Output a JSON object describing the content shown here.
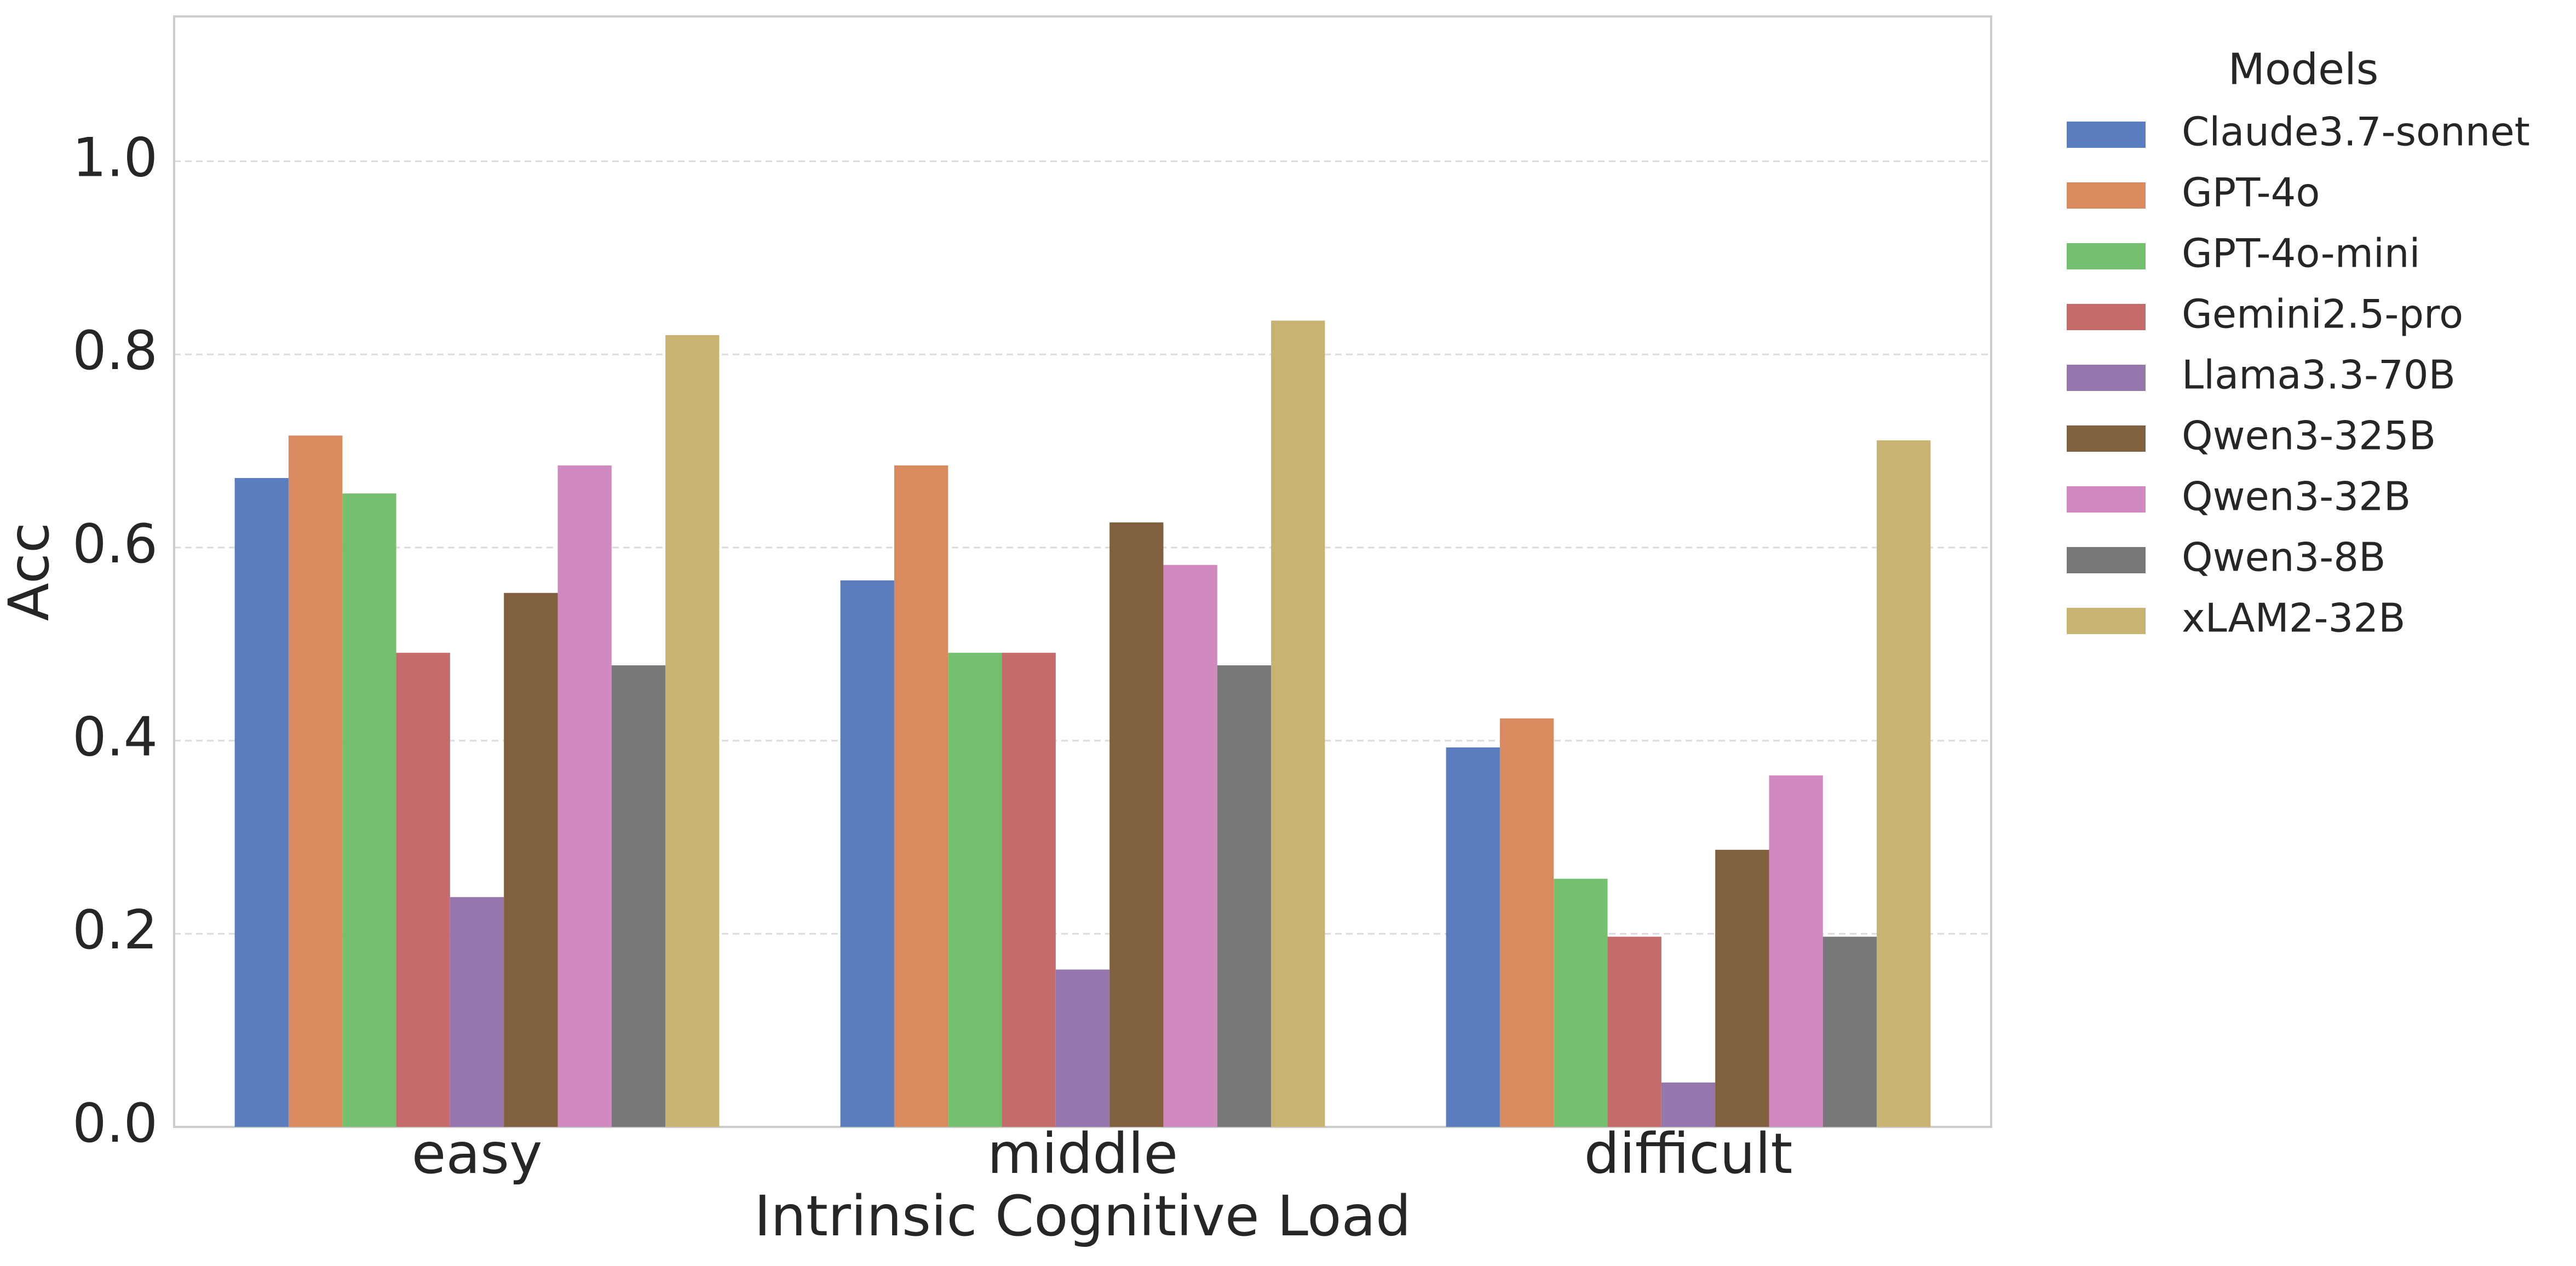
{
  "chart_data": {
    "type": "grouped_bar",
    "xlabel": "Intrinsic Cognitive Load",
    "ylabel": "Acc",
    "legend_title": "Models",
    "legend_position": "outside-right",
    "categories": [
      "easy",
      "middle",
      "difficult"
    ],
    "series": [
      {
        "name": "Claude3.7-sonnet",
        "color": "#5a7dc0",
        "values": [
          0.672,
          0.566,
          0.393
        ]
      },
      {
        "name": "GPT-4o",
        "color": "#d98a5e",
        "values": [
          0.716,
          0.685,
          0.423
        ]
      },
      {
        "name": "GPT-4o-mini",
        "color": "#75c06e",
        "values": [
          0.656,
          0.491,
          0.257
        ]
      },
      {
        "name": "Gemini2.5-pro",
        "color": "#c66b6b",
        "values": [
          0.491,
          0.491,
          0.197
        ]
      },
      {
        "name": "Llama3.3-70B",
        "color": "#9577ae",
        "values": [
          0.238,
          0.163,
          0.046
        ]
      },
      {
        "name": "Qwen3-325B",
        "color": "#80603f",
        "values": [
          0.553,
          0.626,
          0.287
        ]
      },
      {
        "name": "Qwen3-32B",
        "color": "#d18abf",
        "values": [
          0.685,
          0.582,
          0.364
        ]
      },
      {
        "name": "Qwen3-8B",
        "color": "#787878",
        "values": [
          0.478,
          0.478,
          0.197
        ]
      },
      {
        "name": "xLAM2-32B",
        "color": "#c8b372",
        "values": [
          0.82,
          0.835,
          0.711
        ]
      }
    ],
    "ylim": [
      0,
      1.15
    ],
    "yticks": [
      {
        "value": 0,
        "label": "0.0"
      },
      0.2,
      0.4,
      0.6,
      0.8,
      {
        "value": 1,
        "label": "1.0"
      }
    ],
    "grid": true
  }
}
